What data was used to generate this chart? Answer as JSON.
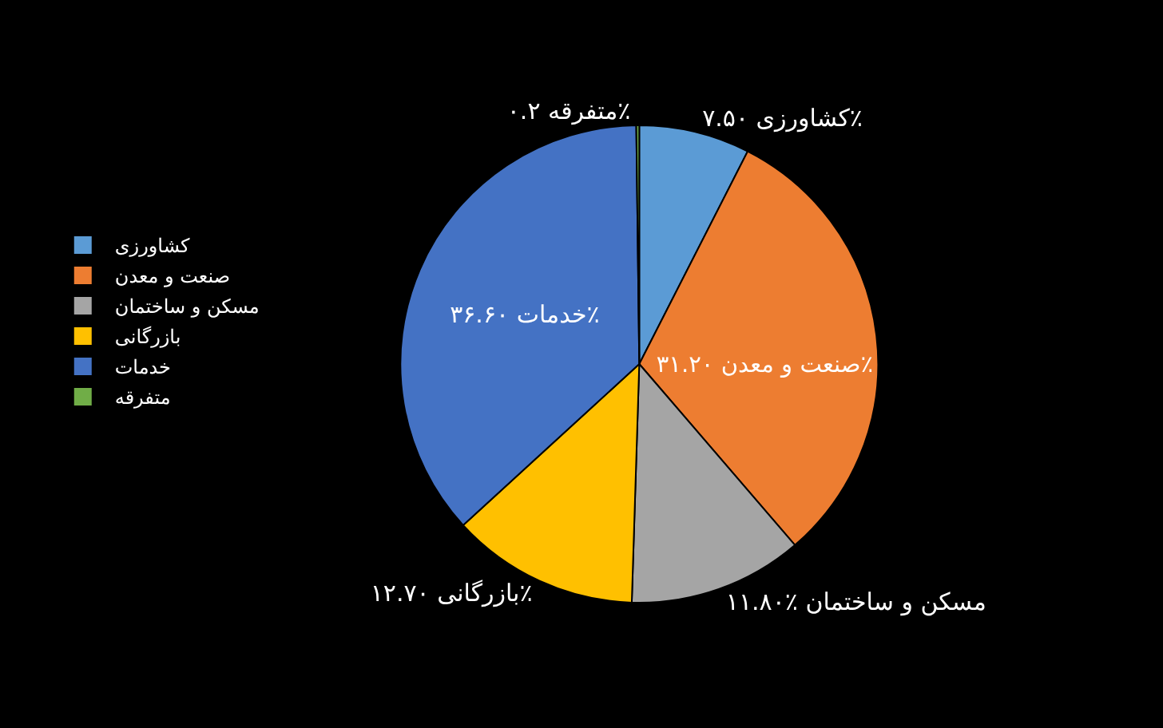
{
  "chart_data": {
    "type": "pie",
    "categories": [
      "کشاورزی",
      "صنعت و معدن",
      "مسکن و ساختمان",
      "بازرگانی",
      "خدمات",
      "متفرقه"
    ],
    "values": [
      7.5,
      31.2,
      11.8,
      12.7,
      36.6,
      0.2
    ],
    "colors": [
      "#5b9bd5",
      "#ed7d31",
      "#a5a5a5",
      "#ffc000",
      "#4472c4",
      "#70ad47"
    ],
    "value_labels": [
      "کشاورزی ۷.۵۰٪",
      "صنعت و معدن ۳۱.۲۰٪",
      "مسکن و ساختمان ٪۱۱.۸۰",
      "بازرگانی ۱۲.۷۰٪",
      "خدمات ۳۶.۶۰٪",
      "متفرقه ۰.۲٪"
    ],
    "legend": "left"
  }
}
